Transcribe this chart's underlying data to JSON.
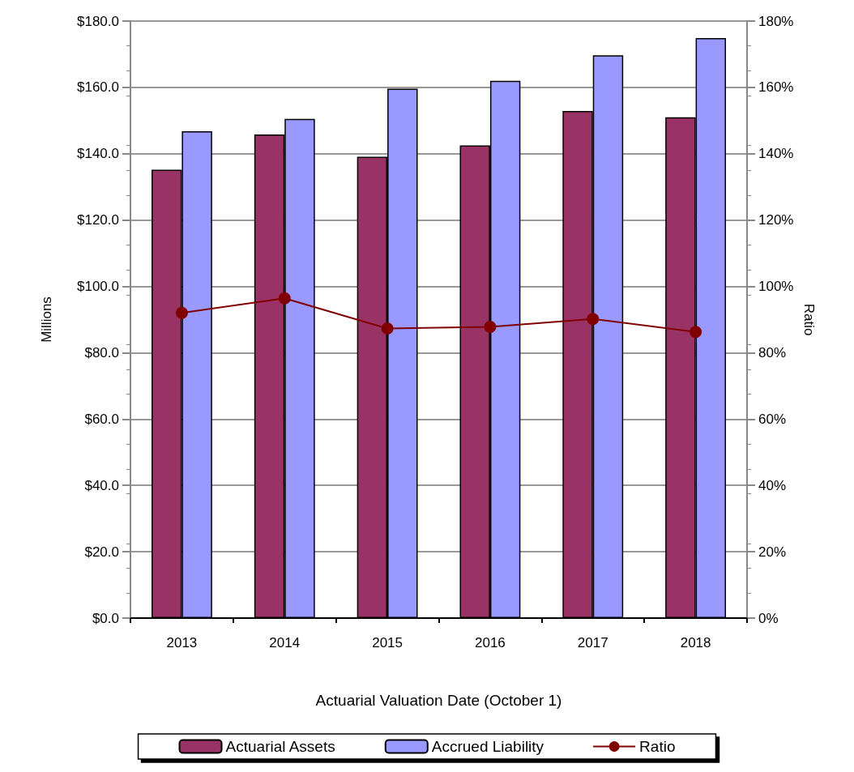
{
  "chart_data": {
    "type": "bar",
    "xlabel": "Actuarial Valuation Date (October 1)",
    "ylabel": "Millions",
    "y2label": "Ratio",
    "categories": [
      "2013",
      "2014",
      "2015",
      "2016",
      "2017",
      "2018"
    ],
    "series": [
      {
        "name": "Actuarial Assets",
        "color": "#993366",
        "values": [
          135.2,
          145.8,
          139.1,
          142.5,
          152.9,
          151.0
        ]
      },
      {
        "name": "Accrued Liability",
        "color": "#9999ff",
        "values": [
          146.8,
          150.5,
          159.6,
          162.0,
          169.7,
          174.9
        ]
      },
      {
        "name": "Ratio",
        "type": "line",
        "axis": "y2",
        "color": "#800000",
        "marker": "circle",
        "values": [
          92.0,
          96.4,
          87.3,
          87.8,
          90.2,
          86.3
        ]
      }
    ],
    "ylim": [
      0,
      180
    ],
    "yticks": [
      {
        "value": 0,
        "label": "$0.0"
      },
      {
        "value": 20,
        "label": "$20.0"
      },
      {
        "value": 40,
        "label": "$40.0"
      },
      {
        "value": 60,
        "label": "$60.0"
      },
      {
        "value": 80,
        "label": "$80.0"
      },
      {
        "value": 100,
        "label": "$100.0"
      },
      {
        "value": 120,
        "label": "$120.0"
      },
      {
        "value": 140,
        "label": "$140.0"
      },
      {
        "value": 160,
        "label": "$160.0"
      },
      {
        "value": 180,
        "label": "$180.0"
      }
    ],
    "y2lim": [
      0,
      180
    ],
    "y2ticks": [
      {
        "value": 0,
        "label": "0%"
      },
      {
        "value": 20,
        "label": "20%"
      },
      {
        "value": 40,
        "label": "40%"
      },
      {
        "value": 60,
        "label": "60%"
      },
      {
        "value": 80,
        "label": "80%"
      },
      {
        "value": 100,
        "label": "100%"
      },
      {
        "value": 120,
        "label": "120%"
      },
      {
        "value": 140,
        "label": "140%"
      },
      {
        "value": 160,
        "label": "160%"
      },
      {
        "value": 180,
        "label": "180%"
      }
    ],
    "grid": "y",
    "legend": "bottom"
  }
}
